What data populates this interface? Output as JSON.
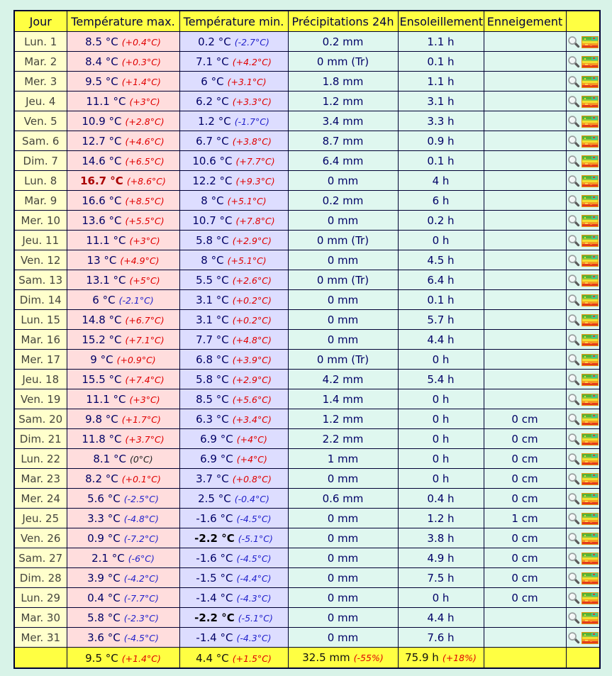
{
  "table": {
    "columns": [
      "Jour",
      "Température max.",
      "Température min.",
      "Précipitations 24h",
      "Ensoleillement",
      "Enneigement",
      ""
    ],
    "icons": {
      "zoom": "magnifier-icon",
      "thumb": "map-thumbnail-icon"
    },
    "colors": {
      "header_bg": "#ffff42",
      "day_bg": "#ffffcc",
      "tmax_bg": "#ffdddd",
      "tmin_bg": "#ddddff",
      "data_bg": "#dff7ef",
      "border": "#000033",
      "value": "#000066",
      "anomaly_positive": "#e00000",
      "anomaly_negative": "#2323cc",
      "record_max": "#aa0000",
      "record_min": "#000000",
      "page_bg": "#d8f3e8"
    },
    "rows": [
      {
        "day": "Lun. 1",
        "max": "8.5 °C",
        "max_anom": "(+0.4°C)",
        "max_trend": "pos",
        "max_record": false,
        "min": "0.2 °C",
        "min_anom": "(-2.7°C)",
        "min_trend": "neg",
        "min_record": false,
        "precip": "0.2 mm",
        "sun": "1.1 h",
        "snow": ""
      },
      {
        "day": "Mar. 2",
        "max": "8.4 °C",
        "max_anom": "(+0.3°C)",
        "max_trend": "pos",
        "max_record": false,
        "min": "7.1 °C",
        "min_anom": "(+4.2°C)",
        "min_trend": "pos",
        "min_record": false,
        "precip": "0 mm (Tr)",
        "sun": "0.1 h",
        "snow": ""
      },
      {
        "day": "Mer. 3",
        "max": "9.5 °C",
        "max_anom": "(+1.4°C)",
        "max_trend": "pos",
        "max_record": false,
        "min": "6 °C",
        "min_anom": "(+3.1°C)",
        "min_trend": "pos",
        "min_record": false,
        "precip": "1.8 mm",
        "sun": "1.1 h",
        "snow": ""
      },
      {
        "day": "Jeu. 4",
        "max": "11.1 °C",
        "max_anom": "(+3°C)",
        "max_trend": "pos",
        "max_record": false,
        "min": "6.2 °C",
        "min_anom": "(+3.3°C)",
        "min_trend": "pos",
        "min_record": false,
        "precip": "1.2 mm",
        "sun": "3.1 h",
        "snow": ""
      },
      {
        "day": "Ven. 5",
        "max": "10.9 °C",
        "max_anom": "(+2.8°C)",
        "max_trend": "pos",
        "max_record": false,
        "min": "1.2 °C",
        "min_anom": "(-1.7°C)",
        "min_trend": "neg",
        "min_record": false,
        "precip": "3.4 mm",
        "sun": "3.3 h",
        "snow": ""
      },
      {
        "day": "Sam. 6",
        "max": "12.7 °C",
        "max_anom": "(+4.6°C)",
        "max_trend": "pos",
        "max_record": false,
        "min": "6.7 °C",
        "min_anom": "(+3.8°C)",
        "min_trend": "pos",
        "min_record": false,
        "precip": "8.7 mm",
        "sun": "0.9 h",
        "snow": ""
      },
      {
        "day": "Dim. 7",
        "max": "14.6 °C",
        "max_anom": "(+6.5°C)",
        "max_trend": "pos",
        "max_record": false,
        "min": "10.6 °C",
        "min_anom": "(+7.7°C)",
        "min_trend": "pos",
        "min_record": false,
        "precip": "6.4 mm",
        "sun": "0.1 h",
        "snow": ""
      },
      {
        "day": "Lun. 8",
        "max": "16.7 °C",
        "max_anom": "(+8.6°C)",
        "max_trend": "pos",
        "max_record": true,
        "min": "12.2 °C",
        "min_anom": "(+9.3°C)",
        "min_trend": "pos",
        "min_record": false,
        "precip": "0 mm",
        "sun": "4 h",
        "snow": ""
      },
      {
        "day": "Mar. 9",
        "max": "16.6 °C",
        "max_anom": "(+8.5°C)",
        "max_trend": "pos",
        "max_record": false,
        "min": "8 °C",
        "min_anom": "(+5.1°C)",
        "min_trend": "pos",
        "min_record": false,
        "precip": "0.2 mm",
        "sun": "6 h",
        "snow": ""
      },
      {
        "day": "Mer. 10",
        "max": "13.6 °C",
        "max_anom": "(+5.5°C)",
        "max_trend": "pos",
        "max_record": false,
        "min": "10.7 °C",
        "min_anom": "(+7.8°C)",
        "min_trend": "pos",
        "min_record": false,
        "precip": "0 mm",
        "sun": "0.2 h",
        "snow": ""
      },
      {
        "day": "Jeu. 11",
        "max": "11.1 °C",
        "max_anom": "(+3°C)",
        "max_trend": "pos",
        "max_record": false,
        "min": "5.8 °C",
        "min_anom": "(+2.9°C)",
        "min_trend": "pos",
        "min_record": false,
        "precip": "0 mm (Tr)",
        "sun": "0 h",
        "snow": ""
      },
      {
        "day": "Ven. 12",
        "max": "13 °C",
        "max_anom": "(+4.9°C)",
        "max_trend": "pos",
        "max_record": false,
        "min": "8 °C",
        "min_anom": "(+5.1°C)",
        "min_trend": "pos",
        "min_record": false,
        "precip": "0 mm",
        "sun": "4.5 h",
        "snow": ""
      },
      {
        "day": "Sam. 13",
        "max": "13.1 °C",
        "max_anom": "(+5°C)",
        "max_trend": "pos",
        "max_record": false,
        "min": "5.5 °C",
        "min_anom": "(+2.6°C)",
        "min_trend": "pos",
        "min_record": false,
        "precip": "0 mm (Tr)",
        "sun": "6.4 h",
        "snow": ""
      },
      {
        "day": "Dim. 14",
        "max": "6 °C",
        "max_anom": "(-2.1°C)",
        "max_trend": "neg",
        "max_record": false,
        "min": "3.1 °C",
        "min_anom": "(+0.2°C)",
        "min_trend": "pos",
        "min_record": false,
        "precip": "0 mm",
        "sun": "0.1 h",
        "snow": ""
      },
      {
        "day": "Lun. 15",
        "max": "14.8 °C",
        "max_anom": "(+6.7°C)",
        "max_trend": "pos",
        "max_record": false,
        "min": "3.1 °C",
        "min_anom": "(+0.2°C)",
        "min_trend": "pos",
        "min_record": false,
        "precip": "0 mm",
        "sun": "5.7 h",
        "snow": ""
      },
      {
        "day": "Mar. 16",
        "max": "15.2 °C",
        "max_anom": "(+7.1°C)",
        "max_trend": "pos",
        "max_record": false,
        "min": "7.7 °C",
        "min_anom": "(+4.8°C)",
        "min_trend": "pos",
        "min_record": false,
        "precip": "0 mm",
        "sun": "4.4 h",
        "snow": ""
      },
      {
        "day": "Mer. 17",
        "max": "9 °C",
        "max_anom": "(+0.9°C)",
        "max_trend": "pos",
        "max_record": false,
        "min": "6.8 °C",
        "min_anom": "(+3.9°C)",
        "min_trend": "pos",
        "min_record": false,
        "precip": "0 mm (Tr)",
        "sun": "0 h",
        "snow": ""
      },
      {
        "day": "Jeu. 18",
        "max": "15.5 °C",
        "max_anom": "(+7.4°C)",
        "max_trend": "pos",
        "max_record": false,
        "min": "5.8 °C",
        "min_anom": "(+2.9°C)",
        "min_trend": "pos",
        "min_record": false,
        "precip": "4.2 mm",
        "sun": "5.4 h",
        "snow": ""
      },
      {
        "day": "Ven. 19",
        "max": "11.1 °C",
        "max_anom": "(+3°C)",
        "max_trend": "pos",
        "max_record": false,
        "min": "8.5 °C",
        "min_anom": "(+5.6°C)",
        "min_trend": "pos",
        "min_record": false,
        "precip": "1.4 mm",
        "sun": "0 h",
        "snow": ""
      },
      {
        "day": "Sam. 20",
        "max": "9.8 °C",
        "max_anom": "(+1.7°C)",
        "max_trend": "pos",
        "max_record": false,
        "min": "6.3 °C",
        "min_anom": "(+3.4°C)",
        "min_trend": "pos",
        "min_record": false,
        "precip": "1.2 mm",
        "sun": "0 h",
        "snow": "0 cm"
      },
      {
        "day": "Dim. 21",
        "max": "11.8 °C",
        "max_anom": "(+3.7°C)",
        "max_trend": "pos",
        "max_record": false,
        "min": "6.9 °C",
        "min_anom": "(+4°C)",
        "min_trend": "pos",
        "min_record": false,
        "precip": "2.2 mm",
        "sun": "0 h",
        "snow": "0 cm"
      },
      {
        "day": "Lun. 22",
        "max": "8.1 °C",
        "max_anom": "(0°C)",
        "max_trend": "zero",
        "max_record": false,
        "min": "6.9 °C",
        "min_anom": "(+4°C)",
        "min_trend": "pos",
        "min_record": false,
        "precip": "1 mm",
        "sun": "0 h",
        "snow": "0 cm"
      },
      {
        "day": "Mar. 23",
        "max": "8.2 °C",
        "max_anom": "(+0.1°C)",
        "max_trend": "pos",
        "max_record": false,
        "min": "3.7 °C",
        "min_anom": "(+0.8°C)",
        "min_trend": "pos",
        "min_record": false,
        "precip": "0 mm",
        "sun": "0 h",
        "snow": "0 cm"
      },
      {
        "day": "Mer. 24",
        "max": "5.6 °C",
        "max_anom": "(-2.5°C)",
        "max_trend": "neg",
        "max_record": false,
        "min": "2.5 °C",
        "min_anom": "(-0.4°C)",
        "min_trend": "neg",
        "min_record": false,
        "precip": "0.6 mm",
        "sun": "0.4 h",
        "snow": "0 cm"
      },
      {
        "day": "Jeu. 25",
        "max": "3.3 °C",
        "max_anom": "(-4.8°C)",
        "max_trend": "neg",
        "max_record": false,
        "min": "-1.6 °C",
        "min_anom": "(-4.5°C)",
        "min_trend": "neg",
        "min_record": false,
        "precip": "0 mm",
        "sun": "1.2 h",
        "snow": "1 cm"
      },
      {
        "day": "Ven. 26",
        "max": "0.9 °C",
        "max_anom": "(-7.2°C)",
        "max_trend": "neg",
        "max_record": false,
        "min": "-2.2 °C",
        "min_anom": "(-5.1°C)",
        "min_trend": "neg",
        "min_record": true,
        "precip": "0 mm",
        "sun": "3.8 h",
        "snow": "0 cm"
      },
      {
        "day": "Sam. 27",
        "max": "2.1 °C",
        "max_anom": "(-6°C)",
        "max_trend": "neg",
        "max_record": false,
        "min": "-1.6 °C",
        "min_anom": "(-4.5°C)",
        "min_trend": "neg",
        "min_record": false,
        "precip": "0 mm",
        "sun": "4.9 h",
        "snow": "0 cm"
      },
      {
        "day": "Dim. 28",
        "max": "3.9 °C",
        "max_anom": "(-4.2°C)",
        "max_trend": "neg",
        "max_record": false,
        "min": "-1.5 °C",
        "min_anom": "(-4.4°C)",
        "min_trend": "neg",
        "min_record": false,
        "precip": "0 mm",
        "sun": "7.5 h",
        "snow": "0 cm"
      },
      {
        "day": "Lun. 29",
        "max": "0.4 °C",
        "max_anom": "(-7.7°C)",
        "max_trend": "neg",
        "max_record": false,
        "min": "-1.4 °C",
        "min_anom": "(-4.3°C)",
        "min_trend": "neg",
        "min_record": false,
        "precip": "0 mm",
        "sun": "0 h",
        "snow": "0 cm"
      },
      {
        "day": "Mar. 30",
        "max": "5.8 °C",
        "max_anom": "(-2.3°C)",
        "max_trend": "neg",
        "max_record": false,
        "min": "-2.2 °C",
        "min_anom": "(-5.1°C)",
        "min_trend": "neg",
        "min_record": true,
        "precip": "0 mm",
        "sun": "4.4 h",
        "snow": ""
      },
      {
        "day": "Mer. 31",
        "max": "3.6 °C",
        "max_anom": "(-4.5°C)",
        "max_trend": "neg",
        "max_record": false,
        "min": "-1.4 °C",
        "min_anom": "(-4.3°C)",
        "min_trend": "neg",
        "min_record": false,
        "precip": "0 mm",
        "sun": "7.6 h",
        "snow": ""
      }
    ],
    "summary": {
      "max": "9.5 °C",
      "max_anom": "(+1.4°C)",
      "min": "4.4 °C",
      "min_anom": "(+1.5°C)",
      "precip": "32.5 mm",
      "precip_anom": "(-55%)",
      "sun": "75.9 h",
      "sun_anom": "(+18%)"
    }
  }
}
